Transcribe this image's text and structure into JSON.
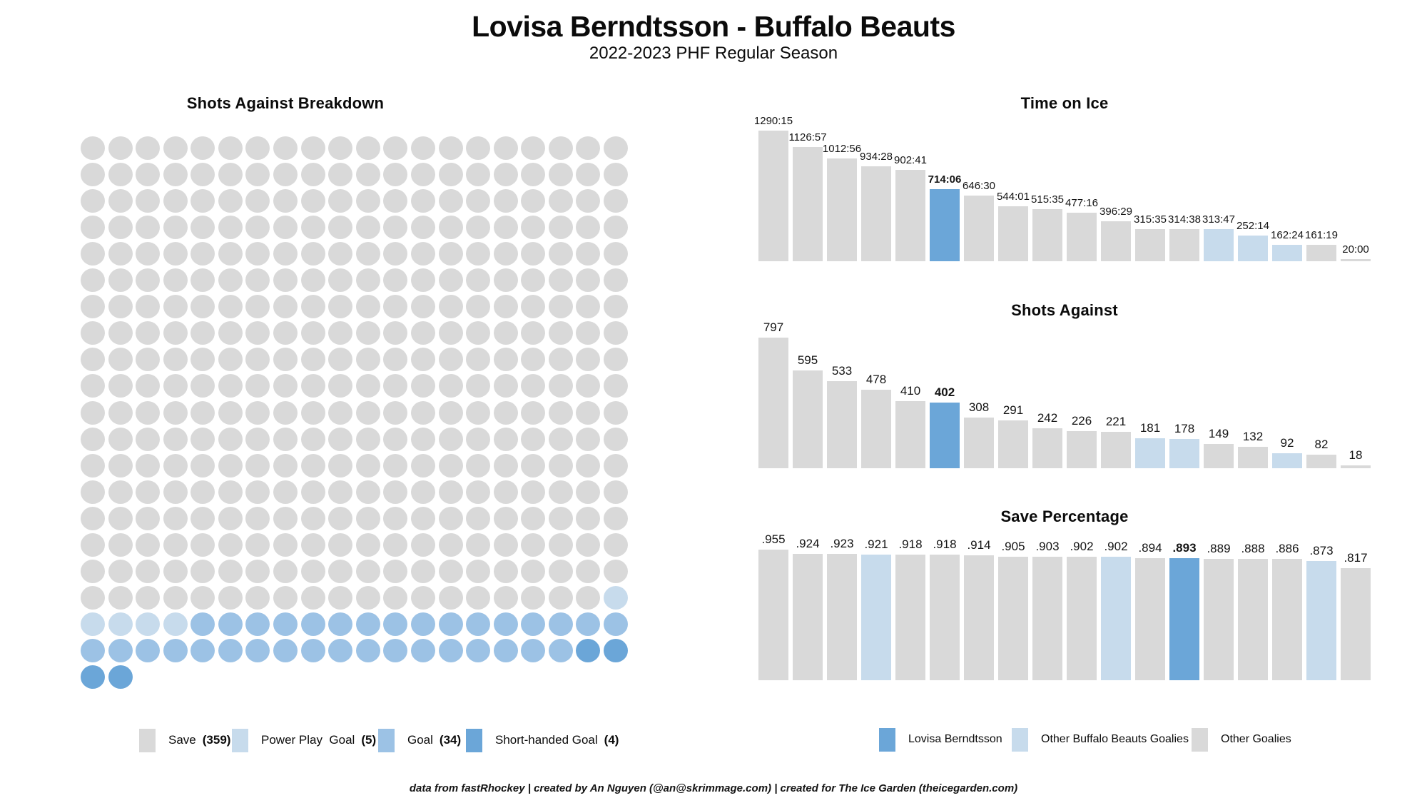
{
  "header": {
    "title": "Lovisa Berndtsson - Buffalo Beauts",
    "subtitle": "2022-2023 PHF Regular Season"
  },
  "colors": {
    "save_gray": "#d9d9d9",
    "power_play_blue": "#c7dbec",
    "goal_blue": "#9cc2e5",
    "lovisa_blue": "#6ba6d8"
  },
  "chart_data": [
    {
      "id": "shots-breakdown-waffle",
      "type": "waffle",
      "title": "Shots Against Breakdown",
      "columns": 20,
      "total": 402,
      "categories": [
        {
          "label": "Save",
          "count": 359,
          "color_key": "save_gray"
        },
        {
          "label": "Power Play  Goal",
          "count": 5,
          "color_key": "power_play_blue"
        },
        {
          "label": "Goal",
          "count": 34,
          "color_key": "goal_blue"
        },
        {
          "label": "Short-handed Goal",
          "count": 4,
          "color_key": "lovisa_blue"
        }
      ]
    },
    {
      "id": "time-on-ice",
      "type": "bar",
      "title": "Time on Ice",
      "labels": [
        "1290:15",
        "1126:57",
        "1012:56",
        "934:28",
        "902:41",
        "714:06",
        "646:30",
        "544:01",
        "515:35",
        "477:16",
        "396:29",
        "315:35",
        "314:38",
        "313:47",
        "252:14",
        "162:24",
        "161:19",
        "20:00"
      ],
      "values": [
        1290.25,
        1126.95,
        1012.93,
        934.47,
        902.68,
        714.1,
        646.5,
        544.02,
        515.58,
        477.27,
        396.48,
        315.58,
        314.63,
        313.78,
        252.23,
        162.4,
        161.32,
        20.0
      ],
      "lovisa_index": 5,
      "beauts_indices": [
        13,
        14,
        15
      ]
    },
    {
      "id": "shots-against",
      "type": "bar",
      "title": "Shots Against",
      "labels": [
        "797",
        "595",
        "533",
        "478",
        "410",
        "402",
        "308",
        "291",
        "242",
        "226",
        "221",
        "181",
        "178",
        "149",
        "132",
        "92",
        "82",
        "18"
      ],
      "values": [
        797,
        595,
        533,
        478,
        410,
        402,
        308,
        291,
        242,
        226,
        221,
        181,
        178,
        149,
        132,
        92,
        82,
        18
      ],
      "lovisa_index": 5,
      "beauts_indices": [
        11,
        12,
        15
      ]
    },
    {
      "id": "save-percentage",
      "type": "bar",
      "title": "Save Percentage",
      "labels": [
        ".955",
        ".924",
        ".923",
        ".921",
        ".918",
        ".918",
        ".914",
        ".905",
        ".903",
        ".902",
        ".902",
        ".894",
        ".893",
        ".889",
        ".888",
        ".886",
        ".873",
        ".817"
      ],
      "values": [
        0.955,
        0.924,
        0.923,
        0.921,
        0.918,
        0.918,
        0.914,
        0.905,
        0.903,
        0.902,
        0.902,
        0.894,
        0.893,
        0.889,
        0.888,
        0.886,
        0.873,
        0.817
      ],
      "lovisa_index": 12,
      "beauts_indices": [
        3,
        10,
        16
      ]
    }
  ],
  "goalie_legend": [
    {
      "label": "Lovisa Berndtsson",
      "color_key": "lovisa_blue"
    },
    {
      "label": "Other Buffalo Beauts Goalies",
      "color_key": "power_play_blue"
    },
    {
      "label": "Other Goalies",
      "color_key": "save_gray"
    }
  ],
  "footer": {
    "credit": "data from fastRhockey | created by An Nguyen (@an@skrimmage.com) | created for The Ice Garden (theicegarden.com)"
  }
}
